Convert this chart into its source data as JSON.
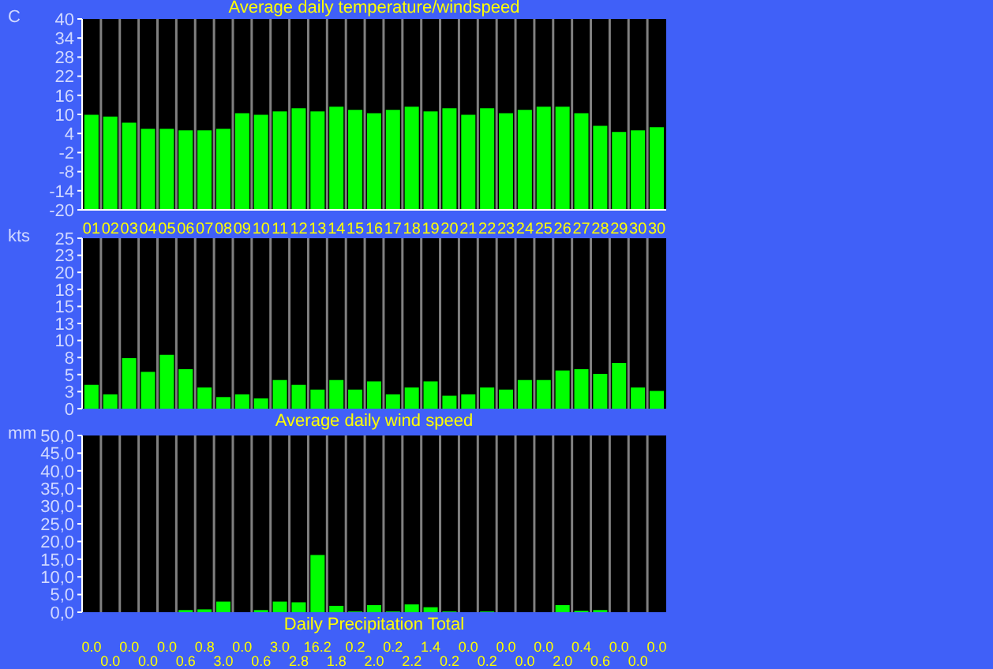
{
  "chart_data": [
    {
      "type": "bar",
      "title": "Average daily temperature/windspeed",
      "ylabel": "C",
      "categories": [
        "01",
        "02",
        "03",
        "04",
        "05",
        "06",
        "07",
        "08",
        "09",
        "10",
        "11",
        "12",
        "13",
        "14",
        "15",
        "16",
        "17",
        "18",
        "19",
        "20",
        "21",
        "22",
        "23",
        "24",
        "25",
        "26",
        "27",
        "28",
        "29",
        "30",
        "30"
      ],
      "values": [
        29.9,
        29.3,
        27.4,
        25.5,
        25.5,
        25.0,
        25.0,
        25.5,
        30.4,
        29.9,
        30.9,
        31.9,
        30.9,
        32.4,
        31.4,
        30.4,
        31.4,
        32.4,
        30.9,
        31.9,
        29.9,
        31.9,
        30.4,
        31.4,
        32.4,
        32.4,
        30.4,
        26.4,
        24.5,
        25.0,
        26.0
      ],
      "base": [
        -20,
        -20,
        -20,
        -20,
        -20,
        -20,
        -20,
        -20,
        -20,
        -20,
        -20,
        -20,
        -20,
        -20,
        -20,
        -20,
        -20,
        -20,
        -20,
        -20,
        -20,
        -20,
        -20,
        -20,
        -20,
        -20,
        -20,
        -20,
        -20,
        -20,
        -20
      ],
      "color": "#00ff00",
      "ylim": [
        -20,
        40
      ],
      "yticks": [
        -20,
        -14,
        -8,
        -2,
        4,
        10,
        16,
        22,
        28,
        34,
        40
      ],
      "grid": "x"
    },
    {
      "type": "bar",
      "ylabel": "kts",
      "xlabel": "Average daily wind speed",
      "values": [
        3.5,
        2.1,
        7.4,
        5.4,
        7.9,
        5.8,
        3.1,
        1.7,
        2.1,
        1.5,
        4.2,
        3.5,
        2.8,
        4.2,
        2.8,
        4.0,
        2.1,
        3.1,
        4.0,
        1.9,
        2.1,
        3.1,
        2.8,
        4.2,
        4.2,
        5.6,
        5.8,
        5.1,
        6.7,
        3.1,
        2.6
      ],
      "color": "#00ff00",
      "ylim": [
        0,
        25
      ],
      "yticks": [
        0,
        {
          "value": 2.5,
          "label": "3"
        },
        5,
        {
          "value": 7.5,
          "label": "8"
        },
        10,
        {
          "value": 12.5,
          "label": "13"
        },
        15,
        {
          "value": 17.5,
          "label": "18"
        },
        20,
        {
          "value": 22.5,
          "label": "23"
        },
        25
      ],
      "grid": "x",
      "tick_labels": "y"
    },
    {
      "type": "bar",
      "ylabel": "mm",
      "xlabel": "Daily Precipitation Total",
      "values": [
        0,
        0,
        0,
        0,
        0,
        0.6,
        0.8,
        3.0,
        0,
        0.6,
        3.0,
        2.8,
        16.2,
        1.8,
        0.2,
        2.0,
        0.2,
        2.2,
        1.4,
        0.2,
        0,
        0.2,
        0,
        0,
        0,
        2.0,
        0.4,
        0.6,
        0,
        0,
        0
      ],
      "value_labels": [
        "0.0",
        "0.0",
        "0.0",
        "0.0",
        "0.0",
        "0.6",
        "0.8",
        "3.0",
        "0.0",
        "0.6",
        "3.0",
        "2.8",
        "16.2",
        "1.8",
        "0.2",
        "2.0",
        "0.2",
        "2.2",
        "1.4",
        "0.2",
        "0.0",
        "0.2",
        "0.0",
        "0.0",
        "0.0",
        "2.0",
        "0.4",
        "0.6",
        "0.0",
        "0.0",
        "0.0"
      ],
      "color": "#00ff00",
      "ylim": [
        0,
        50
      ],
      "yticks": [
        {
          "value": 0,
          "label": "0,0"
        },
        {
          "value": 5,
          "label": "5,0"
        },
        {
          "value": 10,
          "label": "10,0"
        },
        {
          "value": 15,
          "label": "15,0"
        },
        {
          "value": 20,
          "label": "20,0"
        },
        {
          "value": 25,
          "label": "25,0"
        },
        {
          "value": 30,
          "label": "30,0"
        },
        {
          "value": 35,
          "label": "35,0"
        },
        {
          "value": 40,
          "label": "40,0"
        },
        {
          "value": 45,
          "label": "45,0"
        },
        {
          "value": 50,
          "label": "50,0"
        }
      ],
      "grid": "x",
      "tick_labels": "y"
    }
  ]
}
